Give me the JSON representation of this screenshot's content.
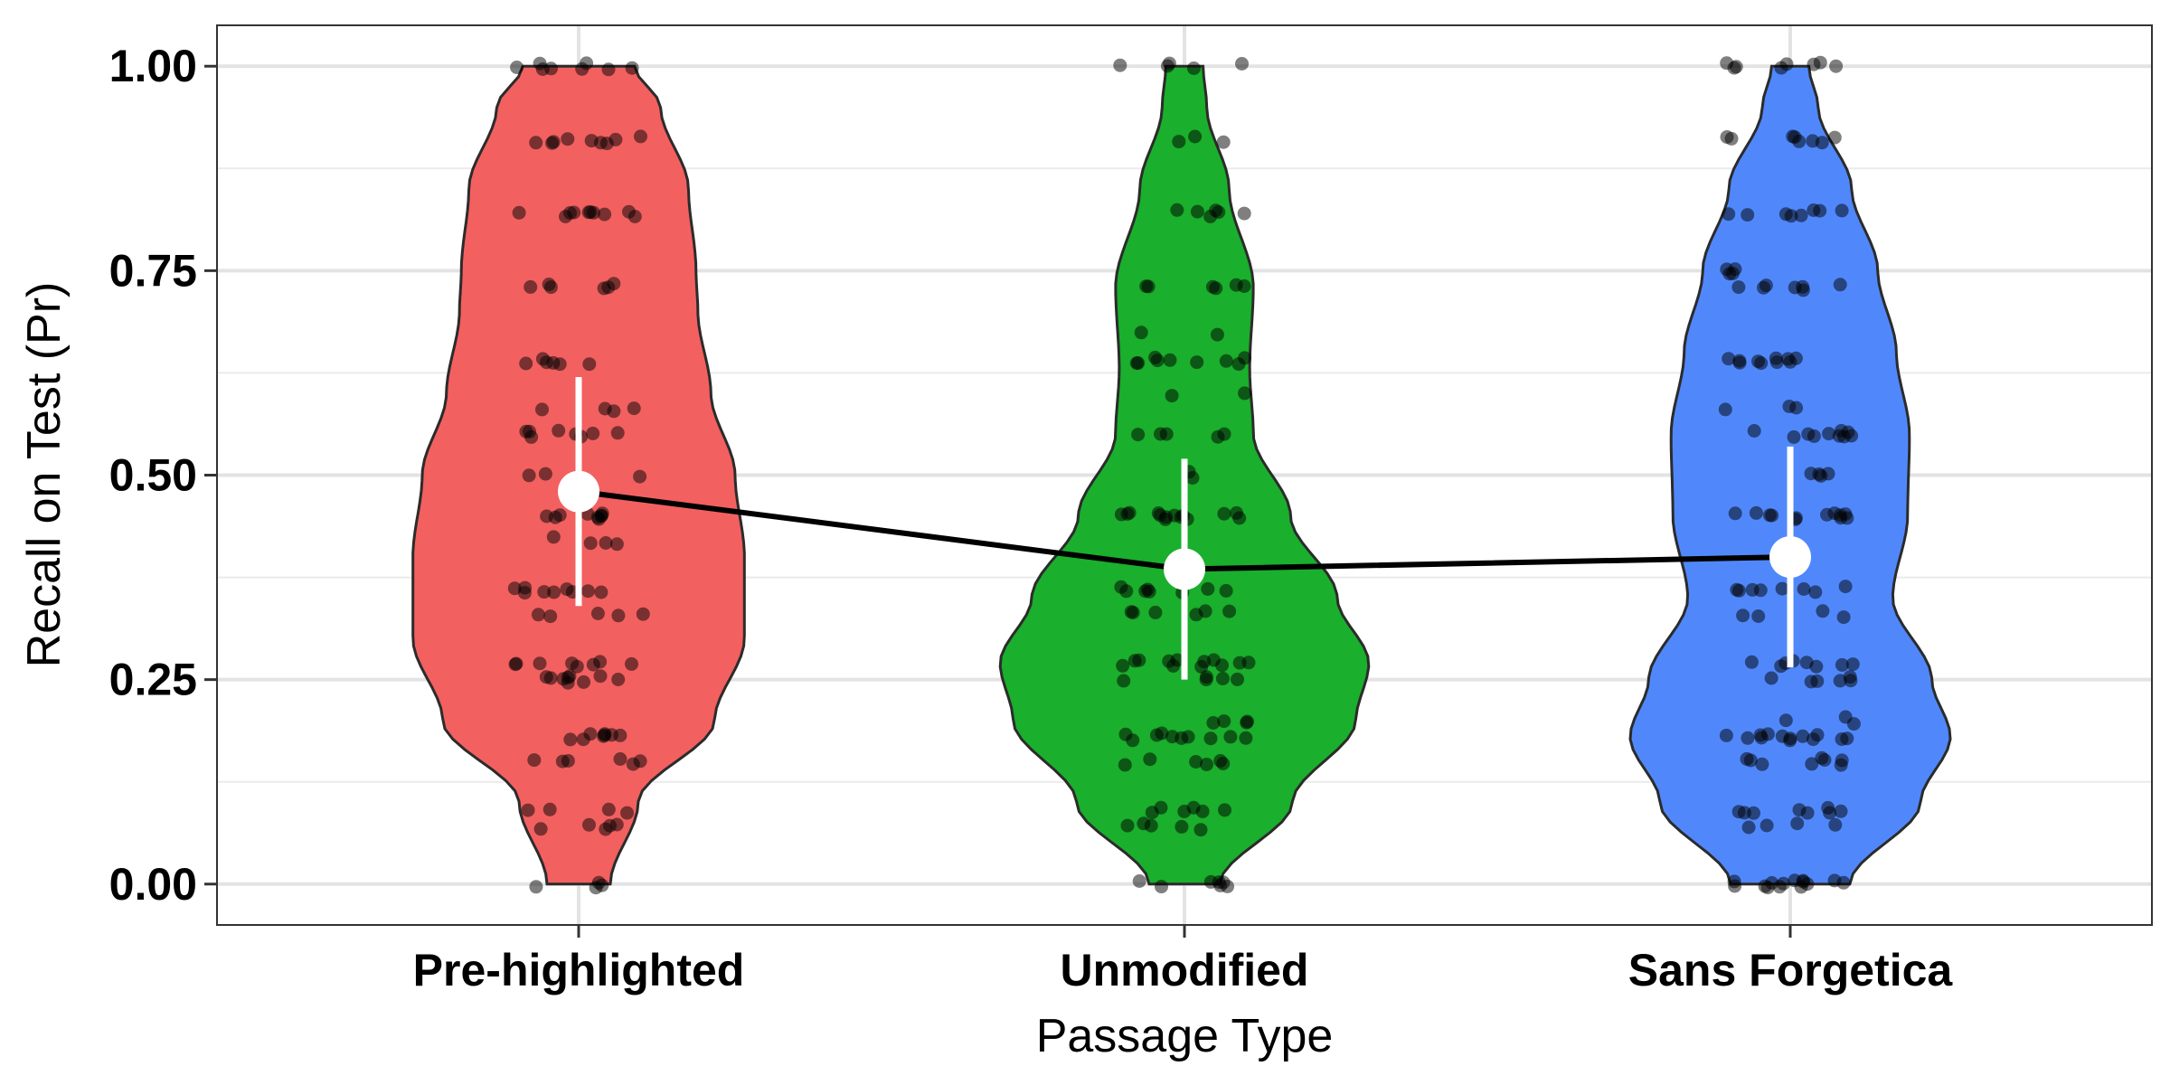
{
  "chart_data": {
    "type": "violin",
    "xlabel": "Passage Type",
    "ylabel": "Recall on Test (Pr)",
    "ylim": [
      -0.05,
      1.05
    ],
    "yticks": [
      0.0,
      0.25,
      0.5,
      0.75,
      1.0
    ],
    "ytick_labels": [
      "0.00",
      "0.25",
      "0.50",
      "0.75",
      "1.00"
    ],
    "grid": true,
    "legend": "none",
    "categories": [
      "Pre-highlighted",
      "Unmodified",
      "Sans Forgetica"
    ],
    "colors": [
      "#f36060",
      "#1aaf2c",
      "#5088fc"
    ],
    "means": [
      0.48,
      0.385,
      0.4
    ],
    "error_bars": [
      [
        0.34,
        0.62
      ],
      [
        0.25,
        0.52
      ],
      [
        0.265,
        0.535
      ]
    ],
    "violin_halfwidth": [
      [
        [
          0.0,
          0.17
        ],
        [
          0.1,
          0.32
        ],
        [
          0.2,
          0.73
        ],
        [
          0.3,
          0.89
        ],
        [
          0.4,
          0.89
        ],
        [
          0.5,
          0.84
        ],
        [
          0.6,
          0.71
        ],
        [
          0.7,
          0.64
        ],
        [
          0.75,
          0.63
        ],
        [
          0.85,
          0.59
        ],
        [
          0.95,
          0.44
        ],
        [
          1.0,
          0.3
        ]
      ],
      [
        [
          0.0,
          0.19
        ],
        [
          0.1,
          0.58
        ],
        [
          0.2,
          0.92
        ],
        [
          0.27,
          0.99
        ],
        [
          0.35,
          0.82
        ],
        [
          0.45,
          0.57
        ],
        [
          0.55,
          0.37
        ],
        [
          0.63,
          0.35
        ],
        [
          0.73,
          0.37
        ],
        [
          0.85,
          0.24
        ],
        [
          0.95,
          0.12
        ],
        [
          1.0,
          0.1
        ]
      ],
      [
        [
          0.0,
          0.32
        ],
        [
          0.1,
          0.7
        ],
        [
          0.18,
          0.86
        ],
        [
          0.25,
          0.76
        ],
        [
          0.35,
          0.55
        ],
        [
          0.45,
          0.63
        ],
        [
          0.55,
          0.64
        ],
        [
          0.65,
          0.57
        ],
        [
          0.75,
          0.47
        ],
        [
          0.85,
          0.33
        ],
        [
          0.95,
          0.15
        ],
        [
          1.0,
          0.1
        ]
      ]
    ],
    "point_levels": [
      [
        [
          0,
          4
        ],
        [
          0.07,
          5
        ],
        [
          0.09,
          4
        ],
        [
          0.15,
          6
        ],
        [
          0.18,
          8
        ],
        [
          0.25,
          9
        ],
        [
          0.27,
          8
        ],
        [
          0.33,
          5
        ],
        [
          0.36,
          9
        ],
        [
          0.42,
          4
        ],
        [
          0.45,
          9
        ],
        [
          0.5,
          3
        ],
        [
          0.55,
          8
        ],
        [
          0.58,
          4
        ],
        [
          0.64,
          6
        ],
        [
          0.73,
          6
        ],
        [
          0.82,
          10
        ],
        [
          0.91,
          9
        ],
        [
          1,
          8
        ]
      ],
      [
        [
          0,
          7
        ],
        [
          0.07,
          5
        ],
        [
          0.09,
          6
        ],
        [
          0.15,
          6
        ],
        [
          0.18,
          10
        ],
        [
          0.2,
          4
        ],
        [
          0.25,
          5
        ],
        [
          0.27,
          12
        ],
        [
          0.33,
          6
        ],
        [
          0.36,
          8
        ],
        [
          0.45,
          14
        ],
        [
          0.5,
          2
        ],
        [
          0.55,
          5
        ],
        [
          0.6,
          2
        ],
        [
          0.64,
          9
        ],
        [
          0.67,
          2
        ],
        [
          0.73,
          6
        ],
        [
          0.82,
          6
        ],
        [
          0.91,
          3
        ],
        [
          1,
          5
        ]
      ],
      [
        [
          0,
          14
        ],
        [
          0.07,
          4
        ],
        [
          0.09,
          8
        ],
        [
          0.15,
          8
        ],
        [
          0.18,
          13
        ],
        [
          0.2,
          3
        ],
        [
          0.25,
          6
        ],
        [
          0.27,
          8
        ],
        [
          0.33,
          4
        ],
        [
          0.36,
          8
        ],
        [
          0.45,
          12
        ],
        [
          0.5,
          4
        ],
        [
          0.55,
          10
        ],
        [
          0.58,
          3
        ],
        [
          0.64,
          10
        ],
        [
          0.73,
          7
        ],
        [
          0.75,
          4
        ],
        [
          0.82,
          8
        ],
        [
          0.91,
          8
        ],
        [
          1,
          8
        ]
      ]
    ]
  }
}
